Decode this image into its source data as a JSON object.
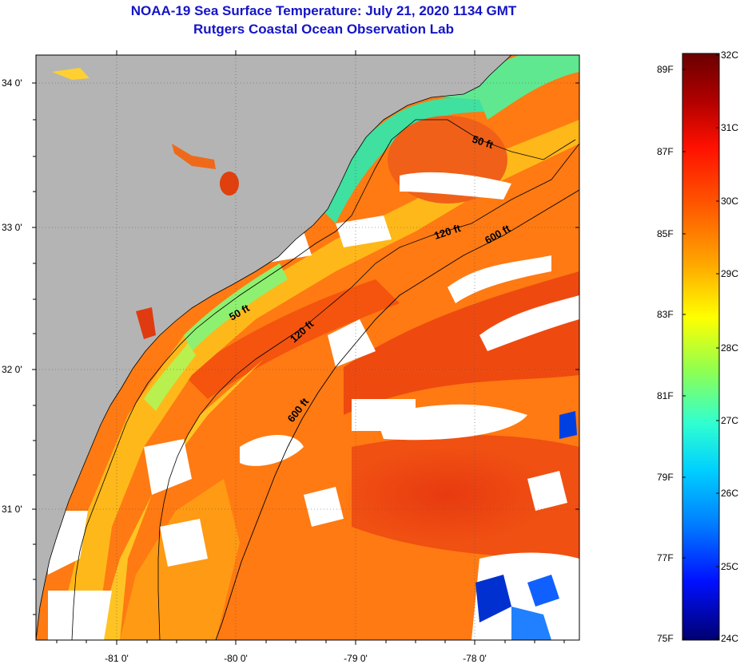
{
  "title": {
    "line1": "NOAA-19 Sea Surface Temperature:  July 21, 2020 1134 GMT",
    "line2": "Rutgers Coastal Ocean Observation Lab"
  },
  "map": {
    "longitude_ticks": [
      "-81 0'",
      "-80 0'",
      "-79 0'",
      "-78 0'"
    ],
    "latitude_ticks": [
      "34 0'",
      "33 0'",
      "32 0'",
      "31 0'"
    ],
    "lon_range": [
      -81.65,
      -77.1
    ],
    "lat_range": [
      30.2,
      34.2
    ],
    "land_color": "#b4b4b4",
    "cloud_color": "#ffffff",
    "isobath_labels": [
      {
        "text": "50 ft",
        "lon": -78.1,
        "lat": 33.6
      },
      {
        "text": "120 ft",
        "lon": -78.8,
        "lat": 32.95
      },
      {
        "text": "600 ft",
        "lon": -78.25,
        "lat": 32.95
      },
      {
        "text": "50 ft",
        "lon": -80.05,
        "lat": 32.42
      },
      {
        "text": "120 ft",
        "lon": -79.55,
        "lat": 32.27
      },
      {
        "text": "600 ft",
        "lon": -79.62,
        "lat": 31.75
      }
    ]
  },
  "colorbar": {
    "celsius_labels": [
      "32C",
      "31C",
      "30C",
      "29C",
      "28C",
      "27C",
      "26C",
      "25C",
      "24C"
    ],
    "fahrenheit_labels": [
      "89F",
      "87F",
      "85F",
      "83F",
      "81F",
      "79F",
      "77F",
      "75F"
    ],
    "colors": [
      "#7a0000",
      "#c00000",
      "#ff1a00",
      "#ff6a00",
      "#ffb000",
      "#ffff00",
      "#a0ff40",
      "#40ffc0",
      "#00e0ff",
      "#0090ff",
      "#0030ff",
      "#0000a0"
    ]
  }
}
